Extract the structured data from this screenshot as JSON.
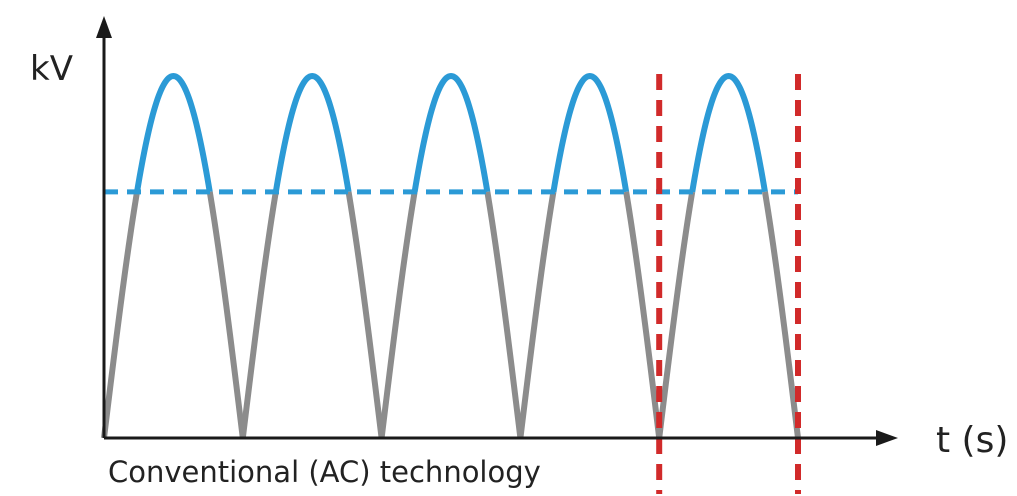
{
  "chart_data": {
    "type": "line",
    "ylabel": "kV",
    "xlabel": "t (s)",
    "caption": "Conventional (AC) technology",
    "ylim": [
      0,
      1
    ],
    "xlim": [
      0,
      1
    ],
    "rectified_wave": {
      "cycles": 5,
      "peak": 1.0,
      "threshold": 0.68
    },
    "markers": [
      0.8,
      1.0
    ],
    "colors": {
      "axis": "#1a1a1a",
      "wave_upper": "#2b9ad6",
      "wave_lower": "#8c8c8c",
      "threshold": "#2b9ad6",
      "markers": "#d12a2a"
    }
  }
}
